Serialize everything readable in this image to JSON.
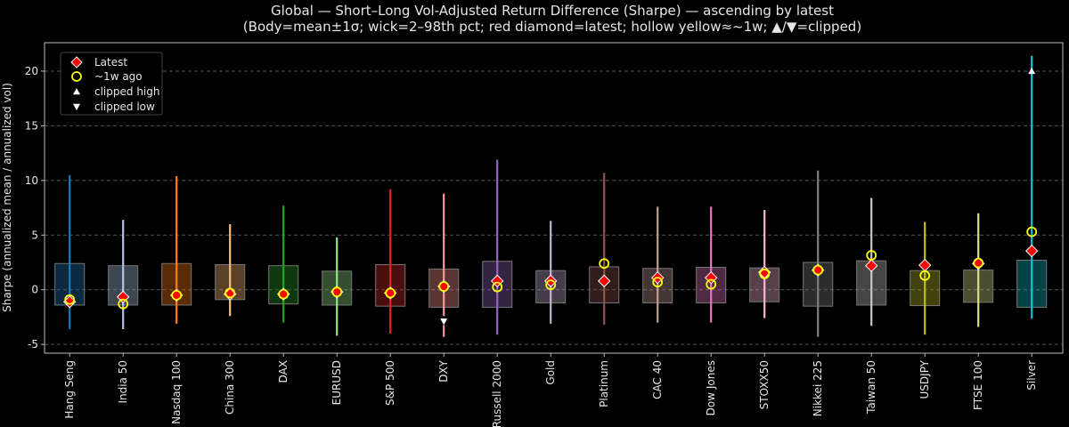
{
  "chart_data": {
    "type": "box",
    "title": "Global — Short–Long Vol-Adjusted Return Difference (Sharpe) — ascending by latest",
    "subtitle": "(Body=mean±1σ; wick=2–98th pct; red diamond=latest; hollow yellow≈~1w; ▲/▼=clipped)",
    "xlabel": "",
    "ylabel": "Sharpe (annualized mean / annualized vol)",
    "ylim": [
      -5.8,
      22.6
    ],
    "yticks": [
      -5,
      0,
      5,
      10,
      15,
      20
    ],
    "grid": "horizontal dashed",
    "legend_placement": "top-left",
    "legend": [
      {
        "label": "Latest",
        "marker": "red-diamond"
      },
      {
        "label": "~1w ago",
        "marker": "hollow-yellow-circle"
      },
      {
        "label": "clipped high",
        "marker": "white-triangle-up"
      },
      {
        "label": "clipped low",
        "marker": "white-triangle-down"
      }
    ],
    "colors": {
      "latest": "#ff0000",
      "week_ago": "#ffff00",
      "clip": "#ffffff"
    },
    "categories": [
      "Hang Seng",
      "India 50",
      "Nasdaq 100",
      "China 300",
      "DAX",
      "EURUSD",
      "S&P 500",
      "DXY",
      "Russell 2000",
      "Gold",
      "Platinum",
      "CAC 40",
      "Dow Jones",
      "STOXX50",
      "Nikkei 225",
      "Taiwan 50",
      "USDJPY",
      "FTSE 100",
      "Silver"
    ],
    "series": [
      {
        "category": "Hang Seng",
        "color": "#1f77b4",
        "body": [
          -1.4,
          2.4
        ],
        "wick": [
          -3.6,
          10.5
        ],
        "latest": -1.1,
        "week_ago": -0.9
      },
      {
        "category": "India 50",
        "color": "#aec7e8",
        "body": [
          -1.4,
          2.2
        ],
        "wick": [
          -3.6,
          6.4
        ],
        "latest": -0.65,
        "week_ago": -1.3
      },
      {
        "category": "Nasdaq 100",
        "color": "#ff7f0e",
        "body": [
          -1.4,
          2.4
        ],
        "wick": [
          -3.1,
          10.4
        ],
        "latest": -0.5,
        "week_ago": -0.5
      },
      {
        "category": "China 300",
        "color": "#ffbb78",
        "body": [
          -0.9,
          2.3
        ],
        "wick": [
          -2.4,
          6.0
        ],
        "latest": -0.4,
        "week_ago": -0.3
      },
      {
        "category": "DAX",
        "color": "#2ca02c",
        "body": [
          -1.3,
          2.2
        ],
        "wick": [
          -3.0,
          7.7
        ],
        "latest": -0.4,
        "week_ago": -0.4
      },
      {
        "category": "EURUSD",
        "color": "#98df8a",
        "body": [
          -1.4,
          1.7
        ],
        "wick": [
          -4.2,
          4.8
        ],
        "latest": -0.2,
        "week_ago": -0.2
      },
      {
        "category": "S&P 500",
        "color": "#d62728",
        "body": [
          -1.5,
          2.3
        ],
        "wick": [
          -4.0,
          9.2
        ],
        "latest": -0.3,
        "week_ago": -0.3
      },
      {
        "category": "DXY",
        "color": "#ff9896",
        "body": [
          -1.6,
          1.9
        ],
        "wick": [
          -4.3,
          8.8
        ],
        "latest": 0.3,
        "week_ago": 0.3,
        "clipped_low": -2.9
      },
      {
        "category": "Russell 2000",
        "color": "#9467bd",
        "body": [
          -1.6,
          2.6
        ],
        "wick": [
          -4.1,
          11.9
        ],
        "latest": 0.8,
        "week_ago": 0.25
      },
      {
        "category": "Gold",
        "color": "#c5b0d5",
        "body": [
          -1.2,
          1.75
        ],
        "wick": [
          -3.1,
          6.3
        ],
        "latest": 0.8,
        "week_ago": 0.45
      },
      {
        "category": "Platinum",
        "color": "#8c564b",
        "body": [
          -1.2,
          2.1
        ],
        "wick": [
          -3.2,
          10.7
        ],
        "latest": 0.8,
        "week_ago": 2.4
      },
      {
        "category": "CAC 40",
        "color": "#c49c94",
        "body": [
          -1.2,
          1.95
        ],
        "wick": [
          -3.0,
          7.6
        ],
        "latest": 1.1,
        "week_ago": 0.7
      },
      {
        "category": "Dow Jones",
        "color": "#e377c2",
        "body": [
          -1.2,
          2.05
        ],
        "wick": [
          -3.0,
          7.6
        ],
        "latest": 1.1,
        "week_ago": 0.5
      },
      {
        "category": "STOXX50",
        "color": "#f7b6d2",
        "body": [
          -1.1,
          2.0
        ],
        "wick": [
          -2.6,
          7.3
        ],
        "latest": 1.6,
        "week_ago": 1.45
      },
      {
        "category": "Nikkei 225",
        "color": "#7f7f7f",
        "body": [
          -1.5,
          2.5
        ],
        "wick": [
          -4.3,
          10.9
        ],
        "latest": 1.8,
        "week_ago": 1.8
      },
      {
        "category": "Taiwan 50",
        "color": "#c7c7c7",
        "body": [
          -1.4,
          2.65
        ],
        "wick": [
          -3.3,
          8.4
        ],
        "latest": 2.2,
        "week_ago": 3.15
      },
      {
        "category": "USDJPY",
        "color": "#bcbd22",
        "body": [
          -1.45,
          1.75
        ],
        "wick": [
          -4.1,
          6.2
        ],
        "latest": 2.25,
        "week_ago": 1.3
      },
      {
        "category": "FTSE 100",
        "color": "#dbdb8d",
        "body": [
          -1.15,
          1.8
        ],
        "wick": [
          -3.4,
          7.0
        ],
        "latest": 2.4,
        "week_ago": 2.45
      },
      {
        "category": "Silver",
        "color": "#17becf",
        "body": [
          -1.6,
          2.7
        ],
        "wick": [
          -2.65,
          21.4
        ],
        "latest": 3.55,
        "week_ago": 5.3,
        "clipped_high": 20
      }
    ]
  }
}
